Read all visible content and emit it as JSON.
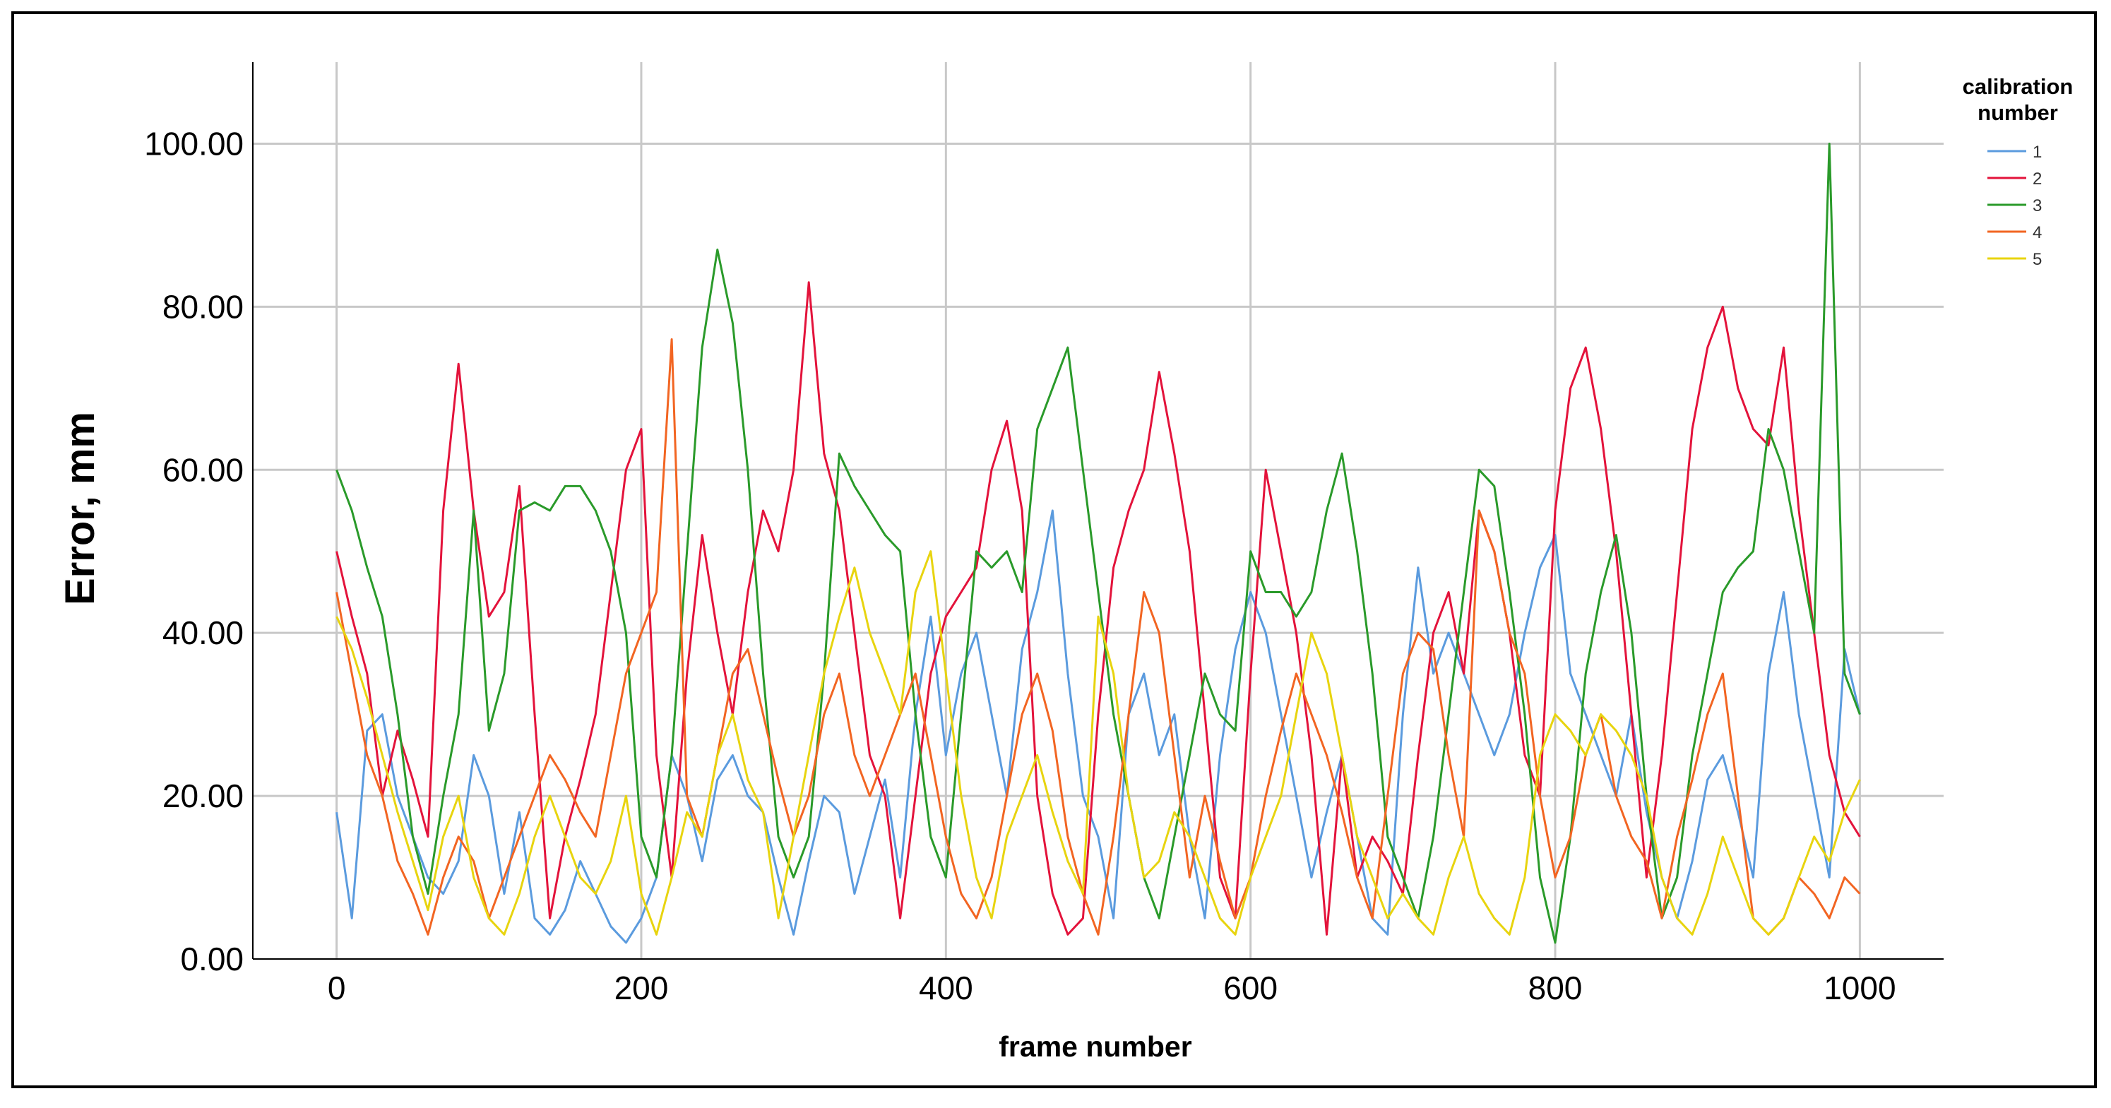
{
  "chart_data": {
    "type": "line",
    "title": "",
    "xlabel": "frame number",
    "ylabel": "Error, mm",
    "xlim": [
      -55,
      1055
    ],
    "ylim": [
      0,
      110
    ],
    "x_ticks": [
      0,
      200,
      400,
      600,
      800,
      1000
    ],
    "y_ticks": [
      0,
      20,
      40,
      60,
      80,
      100
    ],
    "x_tick_labels": [
      "0",
      "200",
      "400",
      "600",
      "800",
      "1000"
    ],
    "y_tick_labels": [
      "0.00",
      "20.00",
      "40.00",
      "60.00",
      "80.00",
      "100.00"
    ],
    "grid": true,
    "legend": {
      "title_line1": "calibration",
      "title_line2": "number",
      "position": "right"
    },
    "series": [
      {
        "name": "1",
        "color": "#5b9bde",
        "x": [
          0,
          10,
          20,
          30,
          40,
          50,
          60,
          70,
          80,
          90,
          100,
          110,
          120,
          130,
          140,
          150,
          160,
          170,
          180,
          190,
          200,
          210,
          220,
          230,
          240,
          250,
          260,
          270,
          280,
          290,
          300,
          310,
          320,
          330,
          340,
          350,
          360,
          370,
          380,
          390,
          400,
          410,
          420,
          430,
          440,
          450,
          460,
          470,
          480,
          490,
          500,
          510,
          520,
          530,
          540,
          550,
          560,
          570,
          580,
          590,
          600,
          610,
          620,
          630,
          640,
          650,
          660,
          670,
          680,
          690,
          700,
          710,
          720,
          730,
          740,
          750,
          760,
          770,
          780,
          790,
          800,
          810,
          820,
          830,
          840,
          850,
          860,
          870,
          880,
          890,
          900,
          910,
          920,
          930,
          940,
          950,
          960,
          970,
          980,
          990,
          1000
        ],
        "values": [
          18,
          5,
          28,
          30,
          20,
          15,
          10,
          8,
          12,
          25,
          20,
          8,
          18,
          5,
          3,
          6,
          12,
          8,
          4,
          2,
          5,
          10,
          25,
          20,
          12,
          22,
          25,
          20,
          18,
          10,
          3,
          12,
          20,
          18,
          8,
          15,
          22,
          10,
          30,
          42,
          25,
          35,
          40,
          30,
          20,
          38,
          45,
          55,
          35,
          20,
          15,
          5,
          30,
          35,
          25,
          30,
          15,
          5,
          25,
          38,
          45,
          40,
          30,
          20,
          10,
          18,
          25,
          15,
          5,
          3,
          30,
          48,
          35,
          40,
          35,
          30,
          25,
          30,
          40,
          48,
          52,
          35,
          30,
          25,
          20,
          30,
          18,
          10,
          5,
          12,
          22,
          25,
          18,
          10,
          35,
          45,
          30,
          20,
          10,
          38,
          30
        ]
      },
      {
        "name": "2",
        "color": "#e3133b",
        "x": [
          0,
          10,
          20,
          30,
          40,
          50,
          60,
          70,
          80,
          90,
          100,
          110,
          120,
          130,
          140,
          150,
          160,
          170,
          180,
          190,
          200,
          210,
          220,
          230,
          240,
          250,
          260,
          270,
          280,
          290,
          300,
          310,
          320,
          330,
          340,
          350,
          360,
          370,
          380,
          390,
          400,
          410,
          420,
          430,
          440,
          450,
          460,
          470,
          480,
          490,
          500,
          510,
          520,
          530,
          540,
          550,
          560,
          570,
          580,
          590,
          600,
          610,
          620,
          630,
          640,
          650,
          660,
          670,
          680,
          690,
          700,
          710,
          720,
          730,
          740,
          750,
          760,
          770,
          780,
          790,
          800,
          810,
          820,
          830,
          840,
          850,
          860,
          870,
          880,
          890,
          900,
          910,
          920,
          930,
          940,
          950,
          960,
          970,
          980,
          990,
          1000
        ],
        "values": [
          50,
          42,
          35,
          20,
          28,
          22,
          15,
          55,
          73,
          55,
          42,
          45,
          58,
          30,
          5,
          15,
          22,
          30,
          45,
          60,
          65,
          25,
          10,
          35,
          52,
          40,
          30,
          45,
          55,
          50,
          60,
          83,
          62,
          55,
          40,
          25,
          20,
          5,
          20,
          35,
          42,
          45,
          48,
          60,
          66,
          55,
          20,
          8,
          3,
          5,
          30,
          48,
          55,
          60,
          72,
          62,
          50,
          30,
          10,
          5,
          35,
          60,
          50,
          40,
          25,
          3,
          25,
          10,
          15,
          12,
          8,
          25,
          40,
          45,
          35,
          55,
          50,
          40,
          25,
          20,
          55,
          70,
          75,
          65,
          50,
          30,
          10,
          25,
          45,
          65,
          75,
          80,
          70,
          65,
          63,
          75,
          55,
          40,
          25,
          18,
          15
        ]
      },
      {
        "name": "3",
        "color": "#2a9a2a",
        "x": [
          0,
          10,
          20,
          30,
          40,
          50,
          60,
          70,
          80,
          90,
          100,
          110,
          120,
          130,
          140,
          150,
          160,
          170,
          180,
          190,
          200,
          210,
          220,
          230,
          240,
          250,
          260,
          270,
          280,
          290,
          300,
          310,
          320,
          330,
          340,
          350,
          360,
          370,
          380,
          390,
          400,
          410,
          420,
          430,
          440,
          450,
          460,
          470,
          480,
          490,
          500,
          510,
          520,
          530,
          540,
          550,
          560,
          570,
          580,
          590,
          600,
          610,
          620,
          630,
          640,
          650,
          660,
          670,
          680,
          690,
          700,
          710,
          720,
          730,
          740,
          750,
          760,
          770,
          780,
          790,
          800,
          810,
          820,
          830,
          840,
          850,
          860,
          870,
          880,
          890,
          900,
          910,
          920,
          930,
          940,
          950,
          960,
          970,
          980,
          990,
          1000
        ],
        "values": [
          60,
          55,
          48,
          42,
          30,
          15,
          8,
          20,
          30,
          55,
          28,
          35,
          55,
          56,
          55,
          58,
          58,
          55,
          50,
          40,
          15,
          10,
          25,
          50,
          75,
          87,
          78,
          60,
          35,
          15,
          10,
          15,
          35,
          62,
          58,
          55,
          52,
          50,
          30,
          15,
          10,
          30,
          50,
          48,
          50,
          45,
          65,
          70,
          75,
          60,
          45,
          30,
          20,
          10,
          5,
          15,
          25,
          35,
          30,
          28,
          50,
          45,
          45,
          42,
          45,
          55,
          62,
          50,
          35,
          15,
          10,
          5,
          15,
          30,
          45,
          60,
          58,
          45,
          30,
          10,
          2,
          15,
          35,
          45,
          52,
          40,
          20,
          5,
          10,
          25,
          35,
          45,
          48,
          50,
          65,
          60,
          50,
          40,
          100,
          35,
          30
        ]
      },
      {
        "name": "4",
        "color": "#f26522",
        "x": [
          0,
          10,
          20,
          30,
          40,
          50,
          60,
          70,
          80,
          90,
          100,
          110,
          120,
          130,
          140,
          150,
          160,
          170,
          180,
          190,
          200,
          210,
          220,
          230,
          240,
          250,
          260,
          270,
          280,
          290,
          300,
          310,
          320,
          330,
          340,
          350,
          360,
          370,
          380,
          390,
          400,
          410,
          420,
          430,
          440,
          450,
          460,
          470,
          480,
          490,
          500,
          510,
          520,
          530,
          540,
          550,
          560,
          570,
          580,
          590,
          600,
          610,
          620,
          630,
          640,
          650,
          660,
          670,
          680,
          690,
          700,
          710,
          720,
          730,
          740,
          750,
          760,
          770,
          780,
          790,
          800,
          810,
          820,
          830,
          840,
          850,
          860,
          870,
          880,
          890,
          900,
          910,
          920,
          930,
          940,
          950,
          960,
          970,
          980,
          990,
          1000
        ],
        "values": [
          45,
          35,
          25,
          20,
          12,
          8,
          3,
          10,
          15,
          12,
          5,
          10,
          15,
          20,
          25,
          22,
          18,
          15,
          25,
          35,
          40,
          45,
          76,
          20,
          15,
          25,
          35,
          38,
          30,
          22,
          15,
          20,
          30,
          35,
          25,
          20,
          25,
          30,
          35,
          25,
          15,
          8,
          5,
          10,
          20,
          30,
          35,
          28,
          15,
          8,
          3,
          15,
          30,
          45,
          40,
          25,
          10,
          20,
          12,
          5,
          10,
          20,
          28,
          35,
          30,
          25,
          18,
          10,
          5,
          20,
          35,
          40,
          38,
          25,
          15,
          55,
          50,
          40,
          35,
          20,
          10,
          15,
          25,
          30,
          20,
          15,
          12,
          5,
          15,
          22,
          30,
          35,
          20,
          5,
          3,
          5,
          10,
          8,
          5,
          10,
          8
        ]
      },
      {
        "name": "5",
        "color": "#e8d40f",
        "x": [
          0,
          10,
          20,
          30,
          40,
          50,
          60,
          70,
          80,
          90,
          100,
          110,
          120,
          130,
          140,
          150,
          160,
          170,
          180,
          190,
          200,
          210,
          220,
          230,
          240,
          250,
          260,
          270,
          280,
          290,
          300,
          310,
          320,
          330,
          340,
          350,
          360,
          370,
          380,
          390,
          400,
          410,
          420,
          430,
          440,
          450,
          460,
          470,
          480,
          490,
          500,
          510,
          520,
          530,
          540,
          550,
          560,
          570,
          580,
          590,
          600,
          610,
          620,
          630,
          640,
          650,
          660,
          670,
          680,
          690,
          700,
          710,
          720,
          730,
          740,
          750,
          760,
          770,
          780,
          790,
          800,
          810,
          820,
          830,
          840,
          850,
          860,
          870,
          880,
          890,
          900,
          910,
          920,
          930,
          940,
          950,
          960,
          970,
          980,
          990,
          1000
        ],
        "values": [
          42,
          38,
          32,
          25,
          18,
          12,
          6,
          15,
          20,
          10,
          5,
          3,
          8,
          15,
          20,
          15,
          10,
          8,
          12,
          20,
          8,
          3,
          10,
          18,
          15,
          25,
          30,
          22,
          18,
          5,
          15,
          25,
          35,
          42,
          48,
          40,
          35,
          30,
          45,
          50,
          35,
          20,
          10,
          5,
          15,
          20,
          25,
          18,
          12,
          8,
          42,
          35,
          20,
          10,
          12,
          18,
          15,
          10,
          5,
          3,
          10,
          15,
          20,
          30,
          40,
          35,
          25,
          15,
          10,
          5,
          8,
          5,
          3,
          10,
          15,
          8,
          5,
          3,
          10,
          25,
          30,
          28,
          25,
          30,
          28,
          25,
          20,
          10,
          5,
          3,
          8,
          15,
          10,
          5,
          3,
          5,
          10,
          15,
          12,
          18,
          22
        ]
      }
    ]
  }
}
